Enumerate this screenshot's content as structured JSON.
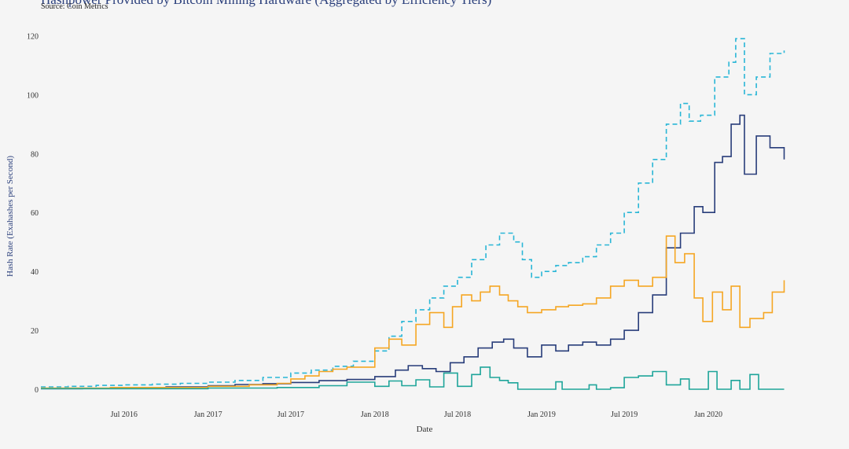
{
  "chart_data": {
    "type": "line",
    "title": "Hashpower Provided by Bitcoin Mining Hardware (Aggregated by Efficiency Tiers)",
    "subtitle": "Source: Coin Metrics",
    "xlabel": "Date",
    "ylabel": "Hash Rate (Exahashes per Second)",
    "x_type": "date",
    "xlim": [
      "2016-01-01",
      "2020-08-15"
    ],
    "ylim": [
      0,
      122
    ],
    "x_ticks": [
      {
        "date": "2016-07-01",
        "label": "Jul 2016"
      },
      {
        "date": "2017-01-01",
        "label": "Jan 2017"
      },
      {
        "date": "2017-07-01",
        "label": "Jul 2017"
      },
      {
        "date": "2018-01-01",
        "label": "Jan 2018"
      },
      {
        "date": "2018-07-01",
        "label": "Jul 2018"
      },
      {
        "date": "2019-01-01",
        "label": "Jan 2019"
      },
      {
        "date": "2019-07-01",
        "label": "Jul 2019"
      },
      {
        "date": "2020-01-01",
        "label": "Jan 2020"
      }
    ],
    "y_ticks": [
      0,
      20,
      40,
      60,
      80,
      100,
      120
    ],
    "grid": false,
    "legend": "none",
    "series": [
      {
        "color": "#29b6d6",
        "dash": "dashed",
        "points": [
          [
            "2016-01-01",
            0.8
          ],
          [
            "2016-03-01",
            1.0
          ],
          [
            "2016-05-01",
            1.3
          ],
          [
            "2016-07-01",
            1.5
          ],
          [
            "2016-09-01",
            1.7
          ],
          [
            "2016-11-01",
            2.0
          ],
          [
            "2017-01-01",
            2.4
          ],
          [
            "2017-03-01",
            3.0
          ],
          [
            "2017-05-01",
            4.0
          ],
          [
            "2017-07-01",
            5.5
          ],
          [
            "2017-08-15",
            6.5
          ],
          [
            "2017-10-01",
            7.8
          ],
          [
            "2017-11-15",
            9.5
          ],
          [
            "2018-01-01",
            13.0
          ],
          [
            "2018-02-01",
            18.0
          ],
          [
            "2018-03-01",
            23.0
          ],
          [
            "2018-04-01",
            27.0
          ],
          [
            "2018-05-01",
            31.0
          ],
          [
            "2018-06-01",
            35.0
          ],
          [
            "2018-07-01",
            38.0
          ],
          [
            "2018-08-01",
            44.0
          ],
          [
            "2018-09-01",
            49.0
          ],
          [
            "2018-10-01",
            53.0
          ],
          [
            "2018-11-01",
            50.0
          ],
          [
            "2018-11-20",
            44.0
          ],
          [
            "2018-12-10",
            38.0
          ],
          [
            "2019-01-01",
            40.0
          ],
          [
            "2019-02-01",
            42.0
          ],
          [
            "2019-03-01",
            43.0
          ],
          [
            "2019-04-01",
            45.0
          ],
          [
            "2019-05-01",
            49.0
          ],
          [
            "2019-06-01",
            53.0
          ],
          [
            "2019-07-01",
            60.0
          ],
          [
            "2019-08-01",
            70.0
          ],
          [
            "2019-09-01",
            78.0
          ],
          [
            "2019-10-01",
            90.0
          ],
          [
            "2019-11-01",
            97.0
          ],
          [
            "2019-11-20",
            91.0
          ],
          [
            "2019-12-15",
            93.0
          ],
          [
            "2020-01-15",
            106.0
          ],
          [
            "2020-02-15",
            111.0
          ],
          [
            "2020-03-01",
            119.0
          ],
          [
            "2020-03-20",
            100.0
          ],
          [
            "2020-04-15",
            106.0
          ],
          [
            "2020-05-15",
            114.0
          ],
          [
            "2020-06-15",
            115.0
          ]
        ]
      },
      {
        "color": "#283d7a",
        "dash": "solid",
        "points": [
          [
            "2016-01-01",
            0.2
          ],
          [
            "2016-04-01",
            0.3
          ],
          [
            "2016-07-01",
            0.5
          ],
          [
            "2016-10-01",
            0.8
          ],
          [
            "2017-01-01",
            1.2
          ],
          [
            "2017-03-01",
            1.6
          ],
          [
            "2017-05-01",
            1.9
          ],
          [
            "2017-07-01",
            2.3
          ],
          [
            "2017-09-01",
            2.9
          ],
          [
            "2017-11-01",
            3.3
          ],
          [
            "2018-01-01",
            4.3
          ],
          [
            "2018-02-15",
            6.5
          ],
          [
            "2018-03-15",
            8.0
          ],
          [
            "2018-04-15",
            7.0
          ],
          [
            "2018-05-15",
            6.0
          ],
          [
            "2018-06-15",
            9.0
          ],
          [
            "2018-07-15",
            11.0
          ],
          [
            "2018-08-15",
            14.0
          ],
          [
            "2018-09-15",
            16.0
          ],
          [
            "2018-10-10",
            17.0
          ],
          [
            "2018-11-01",
            14.0
          ],
          [
            "2018-12-01",
            11.0
          ],
          [
            "2019-01-01",
            15.0
          ],
          [
            "2019-02-01",
            13.0
          ],
          [
            "2019-03-01",
            15.0
          ],
          [
            "2019-04-01",
            16.0
          ],
          [
            "2019-05-01",
            15.0
          ],
          [
            "2019-06-01",
            17.0
          ],
          [
            "2019-07-01",
            20.0
          ],
          [
            "2019-08-01",
            26.0
          ],
          [
            "2019-09-01",
            32.0
          ],
          [
            "2019-10-01",
            48.0
          ],
          [
            "2019-11-01",
            53.0
          ],
          [
            "2019-12-01",
            62.0
          ],
          [
            "2019-12-20",
            60.0
          ],
          [
            "2020-01-15",
            77.0
          ],
          [
            "2020-02-01",
            79.0
          ],
          [
            "2020-02-20",
            90.0
          ],
          [
            "2020-03-10",
            93.0
          ],
          [
            "2020-03-20",
            73.0
          ],
          [
            "2020-04-15",
            86.0
          ],
          [
            "2020-05-15",
            82.0
          ],
          [
            "2020-06-15",
            78.0
          ]
        ]
      },
      {
        "color": "#f5a623",
        "dash": "solid",
        "points": [
          [
            "2016-01-01",
            0.4
          ],
          [
            "2016-06-01",
            0.6
          ],
          [
            "2017-01-01",
            1.0
          ],
          [
            "2017-04-01",
            1.5
          ],
          [
            "2017-06-01",
            2.0
          ],
          [
            "2017-07-01",
            3.5
          ],
          [
            "2017-08-01",
            4.5
          ],
          [
            "2017-09-01",
            6.0
          ],
          [
            "2017-10-01",
            6.8
          ],
          [
            "2017-11-01",
            7.5
          ],
          [
            "2018-01-01",
            14.0
          ],
          [
            "2018-02-01",
            17.0
          ],
          [
            "2018-03-01",
            15.0
          ],
          [
            "2018-04-01",
            22.0
          ],
          [
            "2018-05-01",
            26.0
          ],
          [
            "2018-06-01",
            21.0
          ],
          [
            "2018-06-20",
            28.0
          ],
          [
            "2018-07-10",
            32.0
          ],
          [
            "2018-08-01",
            30.0
          ],
          [
            "2018-08-20",
            33.0
          ],
          [
            "2018-09-10",
            35.0
          ],
          [
            "2018-10-01",
            32.0
          ],
          [
            "2018-10-20",
            30.0
          ],
          [
            "2018-11-10",
            28.0
          ],
          [
            "2018-12-01",
            26.0
          ],
          [
            "2019-01-01",
            27.0
          ],
          [
            "2019-02-01",
            28.0
          ],
          [
            "2019-03-01",
            28.5
          ],
          [
            "2019-04-01",
            29.0
          ],
          [
            "2019-05-01",
            31.0
          ],
          [
            "2019-06-01",
            35.0
          ],
          [
            "2019-07-01",
            37.0
          ],
          [
            "2019-08-01",
            35.0
          ],
          [
            "2019-09-01",
            38.0
          ],
          [
            "2019-10-01",
            52.0
          ],
          [
            "2019-10-20",
            43.0
          ],
          [
            "2019-11-10",
            46.0
          ],
          [
            "2019-12-01",
            31.0
          ],
          [
            "2019-12-20",
            23.0
          ],
          [
            "2020-01-10",
            33.0
          ],
          [
            "2020-02-01",
            27.0
          ],
          [
            "2020-02-20",
            35.0
          ],
          [
            "2020-03-10",
            21.0
          ],
          [
            "2020-04-01",
            24.0
          ],
          [
            "2020-05-01",
            26.0
          ],
          [
            "2020-05-20",
            33.0
          ],
          [
            "2020-06-15",
            37.0
          ]
        ]
      },
      {
        "color": "#1fa59a",
        "dash": "solid",
        "points": [
          [
            "2016-01-01",
            0.2
          ],
          [
            "2017-01-01",
            0.4
          ],
          [
            "2017-06-01",
            0.6
          ],
          [
            "2017-09-01",
            1.2
          ],
          [
            "2017-11-01",
            2.4
          ],
          [
            "2018-01-01",
            1.0
          ],
          [
            "2018-02-01",
            2.8
          ],
          [
            "2018-03-01",
            1.2
          ],
          [
            "2018-04-01",
            3.2
          ],
          [
            "2018-05-01",
            0.8
          ],
          [
            "2018-06-01",
            5.5
          ],
          [
            "2018-07-01",
            1.0
          ],
          [
            "2018-08-01",
            5.0
          ],
          [
            "2018-08-20",
            7.5
          ],
          [
            "2018-09-10",
            4.0
          ],
          [
            "2018-10-01",
            3.0
          ],
          [
            "2018-10-20",
            2.2
          ],
          [
            "2018-11-10",
            0.0
          ],
          [
            "2019-01-01",
            0.0
          ],
          [
            "2019-02-01",
            2.5
          ],
          [
            "2019-02-15",
            0.0
          ],
          [
            "2019-04-15",
            1.5
          ],
          [
            "2019-05-01",
            0.0
          ],
          [
            "2019-06-01",
            0.5
          ],
          [
            "2019-07-01",
            4.0
          ],
          [
            "2019-08-01",
            4.5
          ],
          [
            "2019-09-01",
            6.0
          ],
          [
            "2019-10-01",
            1.5
          ],
          [
            "2019-11-01",
            3.5
          ],
          [
            "2019-11-20",
            0.0
          ],
          [
            "2020-01-01",
            6.0
          ],
          [
            "2020-01-20",
            0.0
          ],
          [
            "2020-02-20",
            3.0
          ],
          [
            "2020-03-10",
            0.0
          ],
          [
            "2020-04-01",
            5.0
          ],
          [
            "2020-04-20",
            0.0
          ],
          [
            "2020-06-15",
            0.0
          ]
        ]
      }
    ]
  }
}
